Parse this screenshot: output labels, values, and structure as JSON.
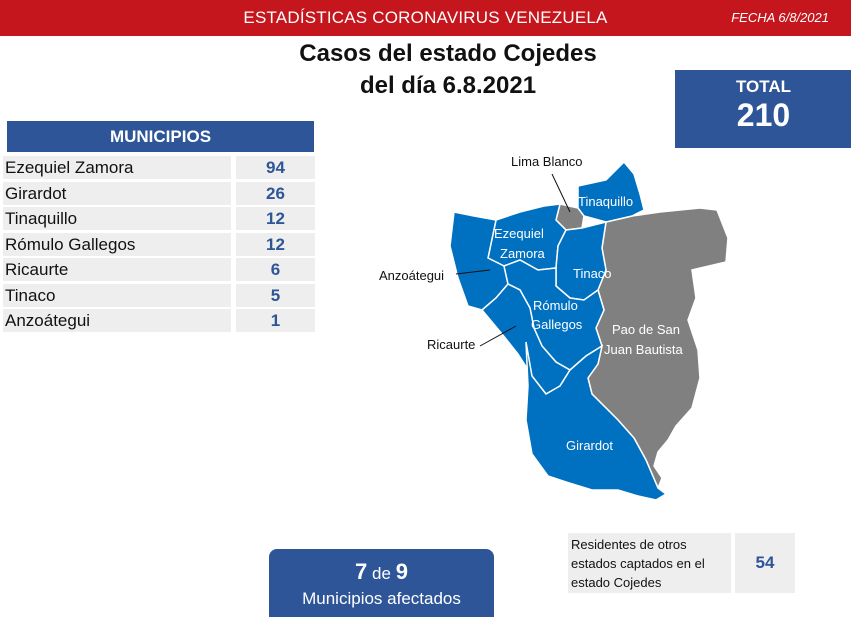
{
  "header": {
    "title": "ESTADÍSTICAS CORONAVIRUS VENEZUELA",
    "date": "FECHA 6/8/2021"
  },
  "main_title": {
    "line1": "Casos del estado Cojedes",
    "line2": "del día 6.8.2021"
  },
  "total": {
    "label": "TOTAL",
    "value": "210"
  },
  "municipios": {
    "header": "MUNICIPIOS",
    "rows": [
      {
        "name": "Ezequiel Zamora",
        "value": "94"
      },
      {
        "name": "Girardot",
        "value": "26"
      },
      {
        "name": "Tinaquillo",
        "value": "12"
      },
      {
        "name": "Rómulo Gallegos",
        "value": "12"
      },
      {
        "name": "Ricaurte",
        "value": "6"
      },
      {
        "name": "Tinaco",
        "value": "5"
      },
      {
        "name": "Anzoátegui",
        "value": "1"
      }
    ]
  },
  "map": {
    "colors": {
      "affected": "#0070c0",
      "unaffected": "#808080",
      "border": "#ffffff"
    },
    "labels": {
      "lima_blanco": "Lima Blanco",
      "tinaquillo": "Tinaquillo",
      "ezequiel_zamora_1": "Ezequiel",
      "ezequiel_zamora_2": "Zamora",
      "anzoategui": "Anzoátegui",
      "tinaco": "Tinaco",
      "romulo_gallegos_1": "Rómulo",
      "romulo_gallegos_2": "Gallegos",
      "pao_1": "Pao de San",
      "pao_2": "Juan Bautista",
      "ricaurte": "Ricaurte",
      "girardot": "Girardot"
    }
  },
  "residentes": {
    "label": "Residentes de otros estados captados en el estado Cojedes",
    "value": "54"
  },
  "afectados": {
    "count": "7",
    "connector": "de",
    "total": "9",
    "label": "Municipios afectados"
  }
}
